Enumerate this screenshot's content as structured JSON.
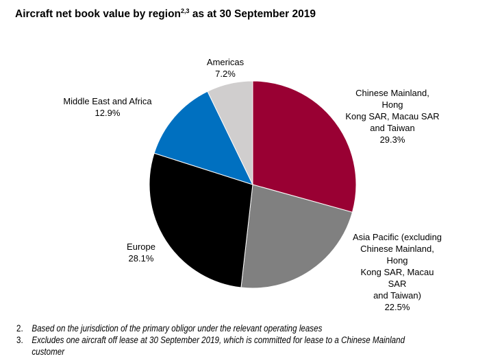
{
  "title": {
    "text": "Aircraft net book value by region",
    "superscript": "2,3",
    "suffix": " as at 30 September 2019"
  },
  "chart_data": {
    "type": "pie",
    "title": "Aircraft net book value by region2,3 as at 30 September 2019",
    "start": "12 o'clock, clockwise",
    "slices": [
      {
        "label": "Chinese Mainland, Hong\nKong SAR, Macau SAR\nand Taiwan",
        "value": 29.3,
        "display": "29.3%",
        "color": "#990033"
      },
      {
        "label": "Asia Pacific (excluding\nChinese Mainland, Hong\nKong SAR, Macau SAR\nand Taiwan)",
        "value": 22.5,
        "display": "22.5%",
        "color": "#808080"
      },
      {
        "label": "Europe",
        "value": 28.1,
        "display": "28.1%",
        "color": "#000000"
      },
      {
        "label": "Middle East and Africa",
        "value": 12.9,
        "display": "12.9%",
        "color": "#0070C0"
      },
      {
        "label": "Americas",
        "value": 7.2,
        "display": "7.2%",
        "color": "#D0CECE"
      }
    ]
  },
  "footnotes": [
    {
      "num": "2.",
      "text": "Based on the jurisdiction of the primary obligor under the relevant operating leases"
    },
    {
      "num": "3.",
      "text": "Excludes one aircraft off lease at 30 September 2019, which is committed for lease to a Chinese Mainland customer"
    }
  ]
}
